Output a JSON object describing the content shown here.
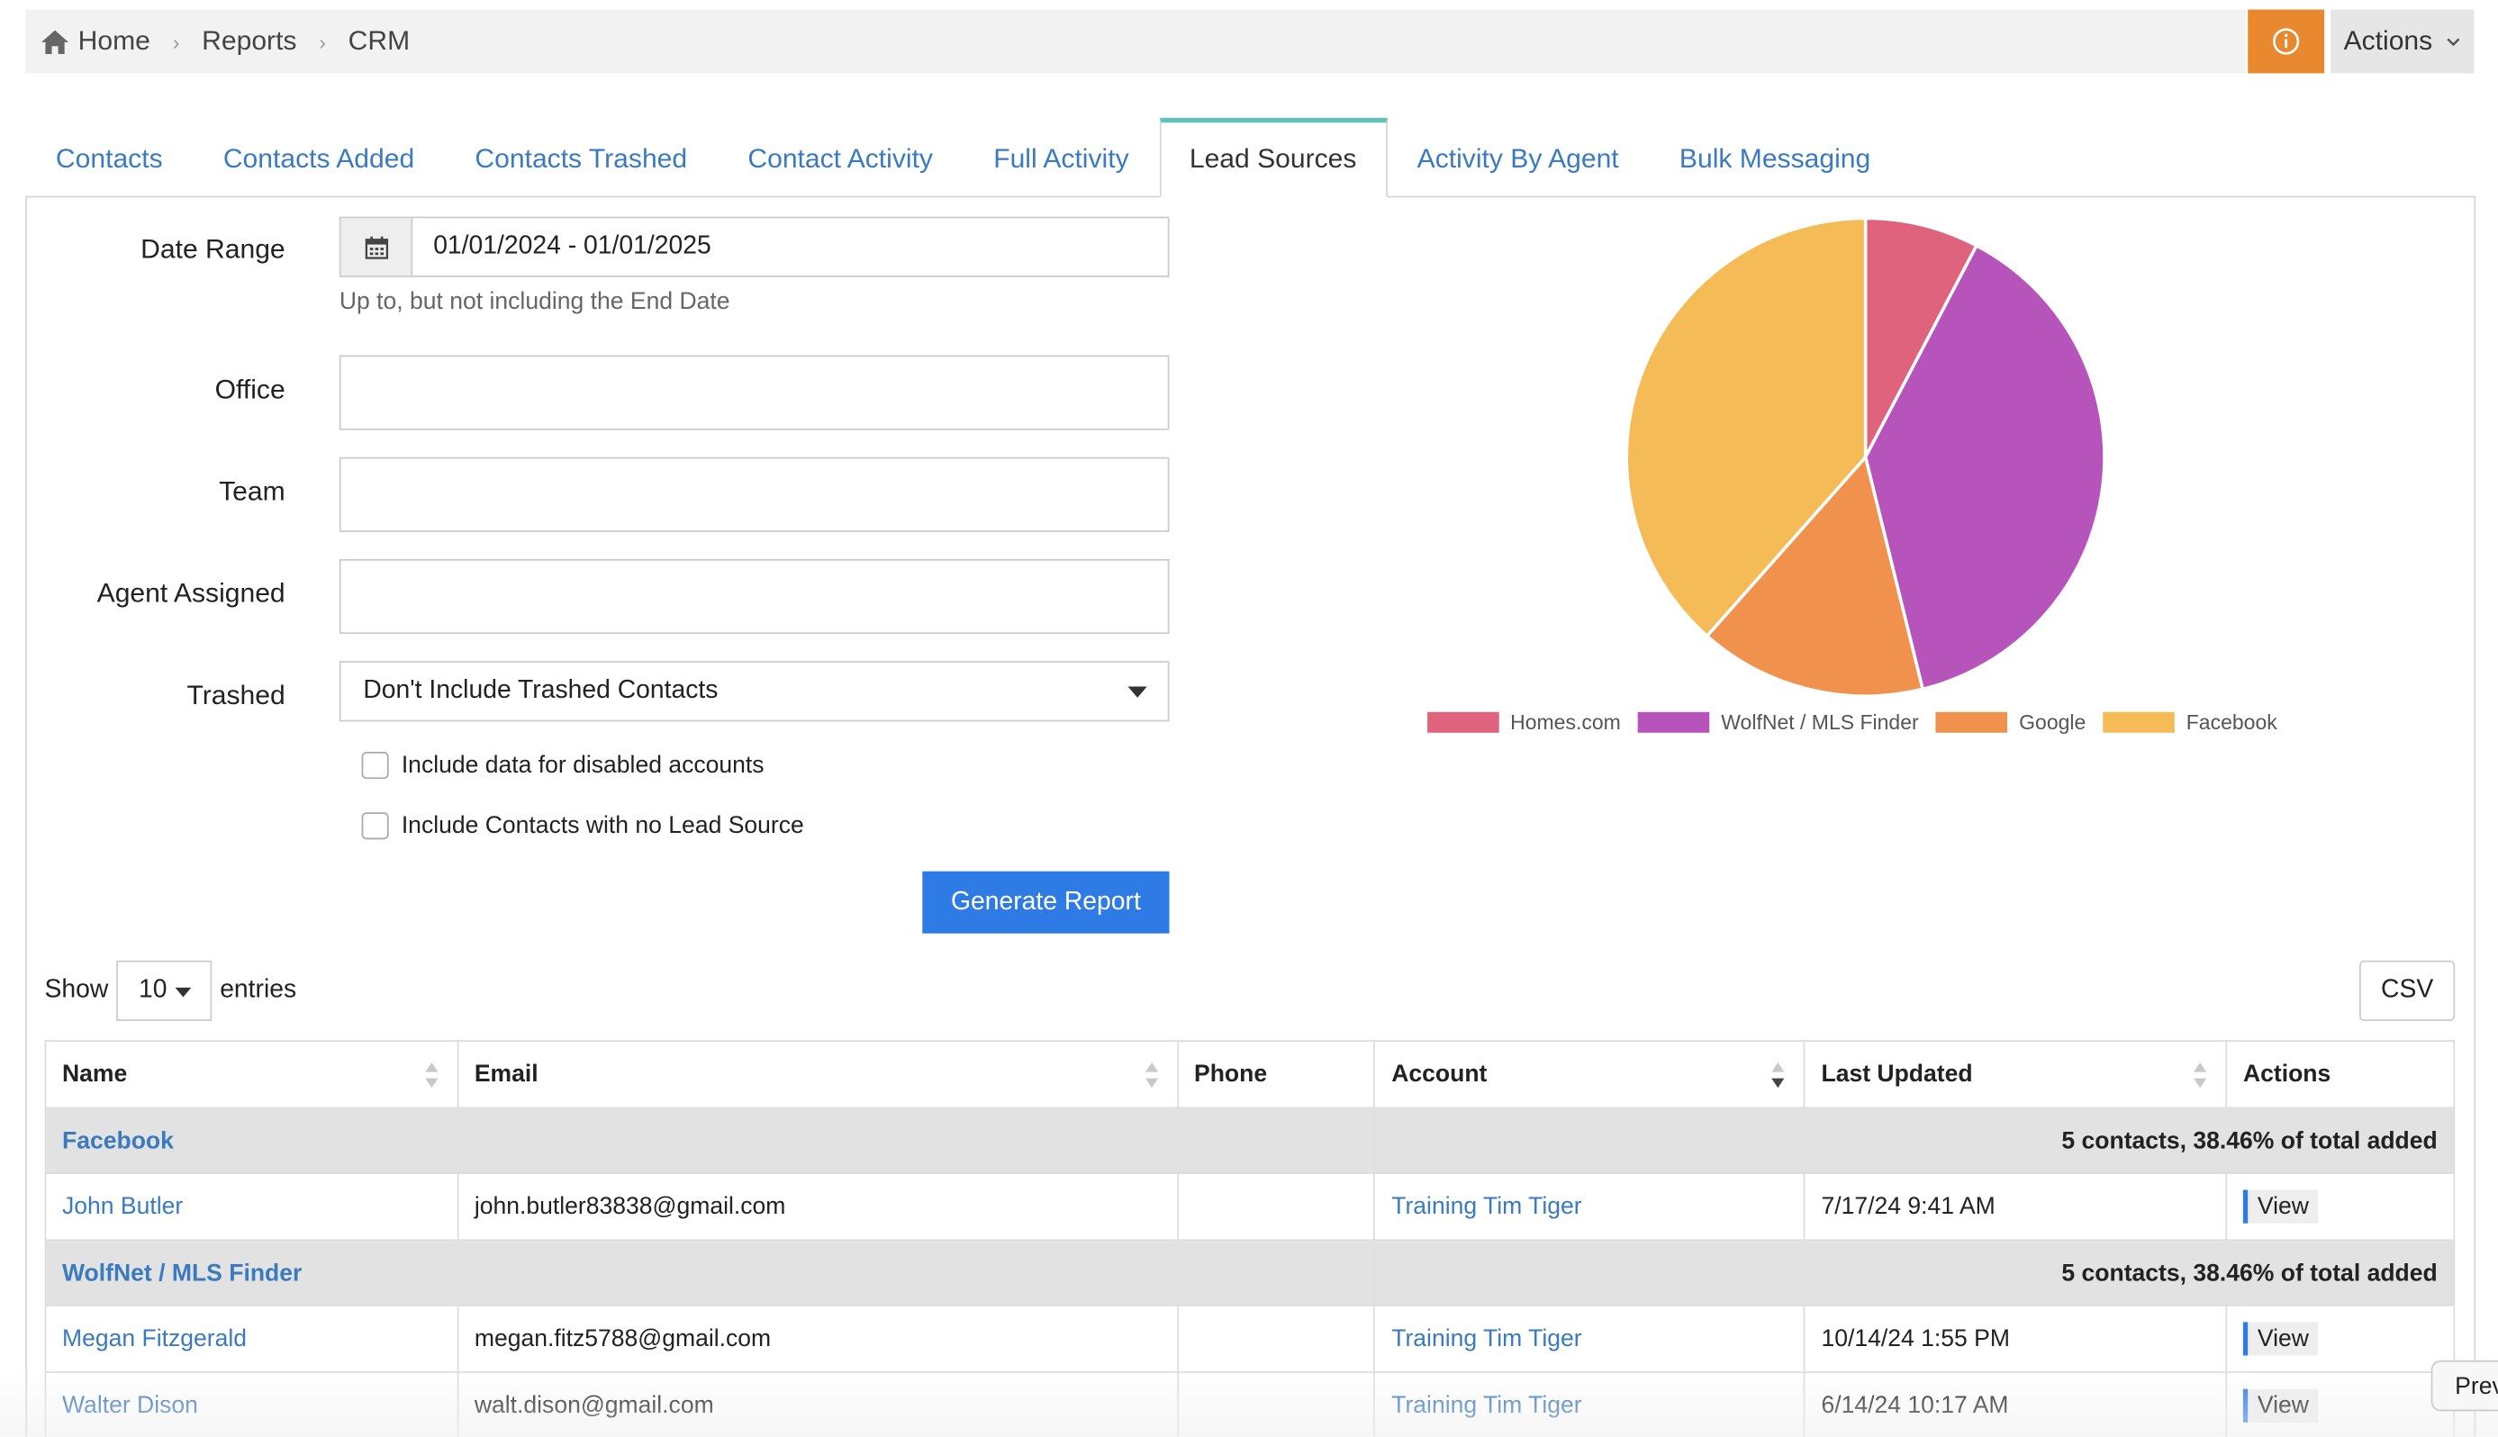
{
  "breadcrumb": {
    "items": [
      "Home",
      "Reports",
      "CRM"
    ]
  },
  "header": {
    "actions_label": "Actions"
  },
  "tabs": [
    {
      "label": "Contacts"
    },
    {
      "label": "Contacts Added"
    },
    {
      "label": "Contacts Trashed"
    },
    {
      "label": "Contact Activity"
    },
    {
      "label": "Full Activity"
    },
    {
      "label": "Lead Sources"
    },
    {
      "label": "Activity By Agent"
    },
    {
      "label": "Bulk Messaging"
    }
  ],
  "form": {
    "date_range_label": "Date Range",
    "date_range_value": "01/01/2024 - 01/01/2025",
    "date_hint": "Up to, but not including the End Date",
    "office_label": "Office",
    "team_label": "Team",
    "agent_label": "Agent Assigned",
    "trashed_label": "Trashed",
    "trashed_value": "Don't Include Trashed Contacts",
    "chk_disabled": "Include data for disabled accounts",
    "chk_no_source": "Include Contacts with no Lead Source",
    "generate_label": "Generate Report"
  },
  "chart_data": {
    "type": "pie",
    "categories": [
      "Homes.com",
      "WolfNet / MLS Finder",
      "Google",
      "Facebook"
    ],
    "values": [
      1,
      5,
      2,
      5
    ],
    "colors": [
      "#e0637e",
      "#b754bb",
      "#f0924e",
      "#f4bb56"
    ],
    "legend": "bottom"
  },
  "table": {
    "show_label": "Show",
    "entries_label": "entries",
    "page_length": "10",
    "csv_label": "CSV",
    "headers": [
      "Name",
      "Email",
      "Phone",
      "Account",
      "Last Updated",
      "Actions"
    ],
    "groups": [
      {
        "name": "Facebook",
        "stat": "5 contacts, 38.46% of total added",
        "rows": [
          {
            "name": "John Butler",
            "email": "john.butler83838@gmail.com",
            "phone": "",
            "account": "Training Tim Tiger",
            "updated": "7/17/24 9:41 AM",
            "action": "View"
          }
        ]
      },
      {
        "name": "WolfNet / MLS Finder",
        "stat": "5 contacts, 38.46% of total added",
        "rows": [
          {
            "name": "Megan Fitzgerald",
            "email": "megan.fitz5788@gmail.com",
            "phone": "",
            "account": "Training Tim Tiger",
            "updated": "10/14/24 1:55 PM",
            "action": "View"
          },
          {
            "name": "Walter Dison",
            "email": "walt.dison@gmail.com",
            "phone": "",
            "account": "Training Tim Tiger",
            "updated": "6/14/24 10:17 AM",
            "action": "View"
          }
        ]
      }
    ]
  },
  "overlay": {
    "prev_label": "Prev"
  }
}
